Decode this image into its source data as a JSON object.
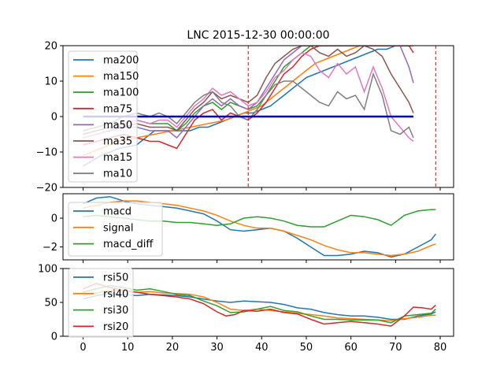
{
  "chart_data": [
    {
      "type": "line",
      "title": "LNC 2015-12-30 00:00:00",
      "xlim": [
        -4.5,
        83
      ],
      "ylim": [
        -20,
        20
      ],
      "yticks": [
        -20,
        -10,
        0,
        10,
        20
      ],
      "vlines": [
        37,
        79
      ],
      "hline": {
        "y": 0,
        "from": 0,
        "to": 74,
        "color": "#0000cc"
      },
      "legend_position": "upper-left",
      "series": [
        {
          "name": "ma200",
          "color": "#1f77b4",
          "x": [
            0,
            4,
            8,
            12,
            16,
            18,
            20,
            22,
            24,
            26,
            28,
            30,
            32,
            34,
            36,
            38,
            40,
            42,
            44,
            46,
            48,
            50,
            52,
            54,
            56,
            58,
            60,
            62,
            64,
            66,
            68,
            70,
            72,
            74
          ],
          "values": [
            -14,
            -11,
            -9,
            -8,
            -4,
            -4,
            -4,
            -4,
            -4,
            -3,
            -3,
            -2,
            -1,
            0,
            1,
            1,
            2,
            3,
            5,
            7,
            9,
            11,
            12,
            13,
            14,
            15,
            16,
            17,
            18,
            19,
            19,
            20,
            20,
            20
          ]
        },
        {
          "name": "ma150",
          "color": "#ff7f0e",
          "x": [
            0,
            4,
            8,
            12,
            16,
            20,
            24,
            28,
            32,
            34,
            36,
            38,
            40,
            42,
            44,
            46,
            48,
            50,
            52,
            54,
            56,
            58,
            60,
            62,
            64,
            66,
            68,
            70,
            72,
            74
          ],
          "values": [
            -11,
            -9,
            -7,
            -6,
            -5,
            -4,
            -3,
            -2,
            -1,
            0,
            1,
            2,
            3,
            5,
            7,
            9,
            11,
            13,
            15,
            16,
            17,
            18,
            19,
            20,
            20,
            20,
            20,
            20,
            20,
            20
          ]
        },
        {
          "name": "ma100",
          "color": "#2ca02c",
          "x": [
            0,
            3,
            6,
            9,
            12,
            15,
            17,
            19,
            21,
            23,
            25,
            27,
            29,
            31,
            33,
            35,
            37,
            39,
            41,
            43,
            45,
            47,
            49,
            51,
            53,
            55,
            57,
            59,
            61,
            63,
            65,
            67,
            69,
            71,
            73,
            74
          ],
          "values": [
            -4,
            -3,
            -2,
            -2,
            -1,
            -2,
            -2,
            -2,
            -4,
            -2,
            1,
            3,
            4,
            2,
            4,
            3,
            2,
            3,
            6,
            10,
            14,
            16,
            18,
            20,
            20,
            20,
            20,
            20,
            20,
            20,
            20,
            20,
            20,
            20,
            20,
            20
          ]
        },
        {
          "name": "ma75",
          "color": "#d62728",
          "x": [
            0,
            3,
            6,
            9,
            12,
            15,
            17,
            19,
            21,
            23,
            25,
            27,
            29,
            31,
            33,
            35,
            37,
            39,
            41,
            43,
            45,
            47,
            49,
            51,
            53,
            55,
            57,
            59,
            61,
            63,
            65,
            67,
            69,
            71,
            73,
            74
          ],
          "values": [
            -8,
            -7,
            -6,
            -5,
            -6,
            -7,
            -7,
            -8,
            -9,
            -5,
            -1,
            1,
            2,
            -1,
            1,
            0,
            -1,
            1,
            4,
            8,
            12,
            14,
            17,
            19,
            20,
            20,
            20,
            20,
            20,
            20,
            20,
            20,
            20,
            20,
            20,
            18
          ]
        },
        {
          "name": "ma50",
          "color": "#9467bd",
          "x": [
            0,
            3,
            6,
            9,
            12,
            15,
            17,
            19,
            21,
            23,
            25,
            27,
            29,
            31,
            33,
            35,
            37,
            39,
            41,
            43,
            45,
            47,
            49,
            51,
            53,
            55,
            57,
            59,
            61,
            63,
            65,
            67,
            69,
            71,
            73,
            74
          ],
          "values": [
            -6,
            -5,
            -4,
            -3,
            -3,
            -4,
            -4,
            -4,
            -6,
            -3,
            0,
            3,
            5,
            3,
            5,
            3,
            2,
            4,
            8,
            12,
            16,
            18,
            20,
            20,
            20,
            20,
            20,
            20,
            20,
            20,
            20,
            20,
            20,
            20,
            14,
            9.5
          ]
        },
        {
          "name": "ma35",
          "color": "#8c564b",
          "x": [
            0,
            3,
            6,
            9,
            12,
            15,
            17,
            19,
            21,
            23,
            25,
            27,
            29,
            31,
            33,
            35,
            37,
            39,
            41,
            43,
            45,
            47,
            49,
            51,
            53,
            55,
            57,
            59,
            61,
            63,
            65,
            67,
            69,
            71,
            73,
            74
          ],
          "values": [
            -5,
            -4,
            -3,
            -3,
            -2,
            -3,
            -3,
            -3,
            -4,
            -1,
            2,
            4,
            7,
            5,
            6,
            5,
            4,
            6,
            11,
            15,
            17,
            19,
            20,
            20,
            18,
            17,
            19,
            17,
            18,
            20,
            19,
            17,
            12,
            8,
            4,
            1
          ]
        },
        {
          "name": "ma15",
          "color": "#e377c2",
          "x": [
            0,
            3,
            6,
            9,
            12,
            15,
            17,
            19,
            21,
            23,
            25,
            27,
            29,
            31,
            33,
            35,
            37,
            39,
            41,
            43,
            45,
            47,
            49,
            51,
            53,
            55,
            57,
            59,
            61,
            63,
            65,
            67,
            69,
            71,
            73,
            74
          ],
          "values": [
            -6,
            -5,
            -4,
            -2,
            -1,
            -2,
            -1,
            -1,
            -3,
            0,
            3,
            5,
            8,
            6,
            7,
            5,
            3,
            4,
            7,
            11,
            13,
            16,
            18,
            17,
            13,
            11,
            15,
            12,
            14,
            7,
            14,
            8,
            0,
            -3,
            -6,
            -7
          ]
        },
        {
          "name": "ma10",
          "color": "#7f7f7f",
          "x": [
            0,
            3,
            6,
            9,
            12,
            15,
            17,
            19,
            21,
            23,
            25,
            27,
            29,
            31,
            33,
            35,
            37,
            39,
            41,
            43,
            45,
            47,
            49,
            51,
            53,
            55,
            57,
            59,
            61,
            63,
            65,
            67,
            69,
            71,
            73,
            74
          ],
          "values": [
            -4,
            -3,
            -2,
            0,
            1,
            0,
            1,
            0,
            -2,
            1,
            4,
            6,
            7,
            4,
            3,
            0,
            -1,
            2,
            6,
            9,
            10,
            10,
            8,
            6,
            4,
            3,
            7,
            5,
            6,
            2,
            12,
            6,
            -4,
            -5,
            -3,
            -6
          ]
        }
      ]
    },
    {
      "type": "line",
      "xlim": [
        -4.5,
        83
      ],
      "ylim": [
        -2.9,
        1.7
      ],
      "yticks": [
        -2,
        0
      ],
      "legend_position": "upper-left",
      "series": [
        {
          "name": "macd",
          "color": "#1f77b4",
          "x": [
            0,
            3,
            6,
            9,
            12,
            15,
            18,
            21,
            24,
            27,
            30,
            33,
            36,
            39,
            42,
            45,
            48,
            51,
            54,
            57,
            60,
            63,
            66,
            69,
            72,
            75,
            78,
            79
          ],
          "values": [
            1.0,
            1.4,
            1.5,
            1.2,
            1.0,
            0.9,
            0.8,
            0.7,
            0.5,
            0.3,
            -0.2,
            -0.8,
            -0.9,
            -0.8,
            -0.7,
            -0.9,
            -1.4,
            -2.0,
            -2.6,
            -2.6,
            -2.5,
            -2.3,
            -2.4,
            -2.7,
            -2.5,
            -2.0,
            -1.5,
            -1.1
          ]
        },
        {
          "name": "signal",
          "color": "#ff7f0e",
          "x": [
            0,
            3,
            6,
            9,
            12,
            15,
            18,
            21,
            24,
            27,
            30,
            33,
            36,
            39,
            42,
            45,
            48,
            51,
            54,
            57,
            60,
            63,
            66,
            69,
            72,
            75,
            78,
            79
          ],
          "values": [
            0.7,
            0.9,
            1.1,
            1.2,
            1.2,
            1.1,
            1.0,
            0.9,
            0.7,
            0.5,
            0.2,
            -0.2,
            -0.5,
            -0.7,
            -0.7,
            -0.9,
            -1.2,
            -1.5,
            -1.9,
            -2.2,
            -2.4,
            -2.4,
            -2.5,
            -2.6,
            -2.5,
            -2.3,
            -1.9,
            -1.8
          ]
        },
        {
          "name": "macd_diff",
          "color": "#2ca02c",
          "x": [
            0,
            3,
            6,
            9,
            12,
            15,
            18,
            21,
            24,
            27,
            30,
            33,
            36,
            39,
            42,
            45,
            48,
            51,
            54,
            57,
            60,
            63,
            66,
            69,
            72,
            75,
            78,
            79
          ],
          "values": [
            0.1,
            0.2,
            0.1,
            0.0,
            -0.1,
            -0.2,
            -0.2,
            -0.3,
            -0.3,
            -0.4,
            -0.5,
            -0.4,
            0.0,
            0.1,
            0.0,
            -0.2,
            -0.5,
            -0.6,
            -0.6,
            -0.2,
            0.2,
            0.1,
            -0.1,
            -0.5,
            0.2,
            0.5,
            0.6,
            0.6
          ]
        }
      ]
    },
    {
      "type": "line",
      "xlim": [
        -4.5,
        83
      ],
      "ylim": [
        0,
        100
      ],
      "yticks": [
        0,
        50,
        100
      ],
      "xticks": [
        0,
        10,
        20,
        30,
        40,
        50,
        60,
        70,
        80
      ],
      "legend_position": "upper-left",
      "series": [
        {
          "name": "rsi50",
          "color": "#1f77b4",
          "x": [
            0,
            3,
            6,
            9,
            12,
            15,
            18,
            21,
            24,
            27,
            30,
            33,
            36,
            39,
            42,
            45,
            48,
            51,
            54,
            57,
            60,
            63,
            66,
            69,
            72,
            75,
            78,
            79
          ],
          "values": [
            55,
            60,
            63,
            62,
            60,
            62,
            61,
            60,
            58,
            55,
            52,
            50,
            52,
            51,
            50,
            47,
            42,
            40,
            35,
            32,
            30,
            30,
            28,
            25,
            25,
            30,
            33,
            36
          ]
        },
        {
          "name": "rsi40",
          "color": "#ff7f0e",
          "x": [
            0,
            3,
            6,
            9,
            12,
            15,
            18,
            21,
            24,
            27,
            30,
            33,
            36,
            39,
            42,
            45,
            48,
            51,
            54,
            57,
            60,
            63,
            66,
            69,
            72,
            75,
            78,
            79
          ],
          "values": [
            60,
            64,
            68,
            67,
            65,
            66,
            64,
            63,
            62,
            58,
            50,
            40,
            38,
            40,
            38,
            36,
            34,
            32,
            30,
            27,
            26,
            25,
            24,
            23,
            26,
            28,
            31,
            31
          ]
        },
        {
          "name": "rsi30",
          "color": "#2ca02c",
          "x": [
            0,
            3,
            6,
            9,
            12,
            15,
            18,
            21,
            24,
            27,
            30,
            33,
            36,
            39,
            42,
            45,
            48,
            51,
            54,
            57,
            60,
            63,
            66,
            69,
            72,
            75,
            78,
            79
          ],
          "values": [
            65,
            70,
            75,
            72,
            68,
            70,
            66,
            62,
            60,
            52,
            45,
            35,
            36,
            40,
            44,
            38,
            36,
            30,
            25,
            25,
            24,
            24,
            24,
            20,
            30,
            32,
            34,
            40
          ]
        },
        {
          "name": "rsi20",
          "color": "#d62728",
          "x": [
            0,
            3,
            6,
            9,
            12,
            15,
            18,
            21,
            24,
            27,
            30,
            32,
            34,
            36,
            39,
            42,
            45,
            48,
            51,
            54,
            57,
            60,
            63,
            66,
            69,
            72,
            74,
            76,
            78,
            79
          ],
          "values": [
            70,
            78,
            72,
            68,
            65,
            62,
            60,
            58,
            55,
            48,
            36,
            30,
            32,
            38,
            37,
            40,
            35,
            33,
            25,
            18,
            20,
            22,
            20,
            18,
            15,
            30,
            43,
            42,
            40,
            46
          ]
        }
      ]
    }
  ]
}
